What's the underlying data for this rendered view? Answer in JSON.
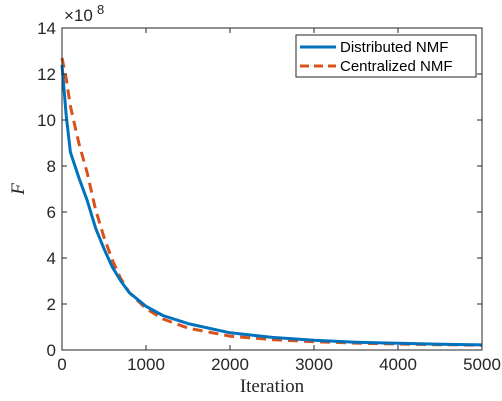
{
  "chart_data": {
    "type": "line",
    "xlabel": "Iteration",
    "ylabel": "F",
    "y_exponent_label": "×10",
    "y_exponent": "8",
    "xlim": [
      0,
      5000
    ],
    "ylim": [
      0,
      14
    ],
    "x_ticks": [
      "0",
      "1000",
      "2000",
      "3000",
      "4000",
      "5000"
    ],
    "y_ticks": [
      "0",
      "2",
      "4",
      "6",
      "8",
      "10",
      "12",
      "14"
    ],
    "grid": false,
    "legend_position": "top-right",
    "series": [
      {
        "name": "Distributed NMF",
        "color": "#0072bd",
        "style": "solid",
        "x": [
          0,
          50,
          100,
          200,
          300,
          400,
          500,
          600,
          700,
          800,
          1000,
          1200,
          1500,
          2000,
          2500,
          3000,
          3500,
          4000,
          4500,
          5000
        ],
        "y": [
          12.4,
          10.2,
          8.6,
          7.5,
          6.5,
          5.3,
          4.4,
          3.6,
          3.0,
          2.5,
          1.9,
          1.5,
          1.15,
          0.75,
          0.55,
          0.42,
          0.34,
          0.29,
          0.25,
          0.22
        ]
      },
      {
        "name": "Centralized NMF",
        "color": "#d95319",
        "style": "dashed",
        "x": [
          0,
          50,
          100,
          200,
          300,
          400,
          500,
          600,
          700,
          800,
          1000,
          1200,
          1500,
          2000,
          2500,
          3000,
          3500,
          4000,
          4500,
          5000
        ],
        "y": [
          12.7,
          11.8,
          10.6,
          9.0,
          7.7,
          6.1,
          4.9,
          3.9,
          3.1,
          2.5,
          1.8,
          1.35,
          0.95,
          0.6,
          0.45,
          0.36,
          0.3,
          0.26,
          0.23,
          0.21
        ]
      }
    ]
  }
}
